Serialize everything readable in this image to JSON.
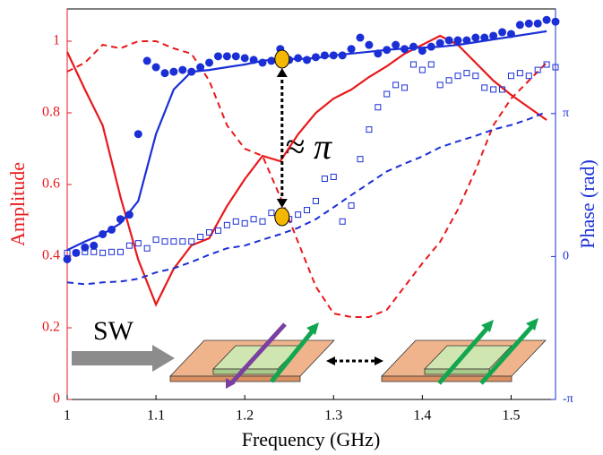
{
  "chart_data": {
    "type": "line",
    "xlabel": "Frequency (GHz)",
    "ylabel": "Amplitude",
    "y2label": "Phase (rad)",
    "xlim": [
      1,
      1.55
    ],
    "xticks": [
      1,
      1.1,
      1.2,
      1.3,
      1.4,
      1.5
    ],
    "ylim": [
      0,
      1.09
    ],
    "yticks": [
      0,
      0.2,
      0.4,
      0.6,
      0.8,
      1
    ],
    "y2lim": [
      -3.1416,
      5.44
    ],
    "y2ticks": [
      {
        "value": -3.1416,
        "label": "-π"
      },
      0,
      {
        "value": 3.1416,
        "label": "π"
      }
    ],
    "ycolor": "#e8191c",
    "y2color": "#1a2fd6",
    "x": [
      1,
      1.02,
      1.04,
      1.06,
      1.08,
      1.1,
      1.12,
      1.14,
      1.16,
      1.18,
      1.2,
      1.22,
      1.24,
      1.26,
      1.28,
      1.3,
      1.32,
      1.34,
      1.36,
      1.38,
      1.4,
      1.42,
      1.44,
      1.46,
      1.48,
      1.5,
      1.52,
      1.54
    ],
    "series": [
      {
        "color": "#e8191c",
        "style": "solid",
        "axis": "y",
        "values": [
          0.97,
          0.865,
          0.765,
          0.565,
          0.39,
          0.265,
          0.365,
          0.43,
          0.45,
          0.54,
          0.615,
          0.68,
          0.665,
          0.74,
          0.8,
          0.84,
          0.865,
          0.9,
          0.93,
          0.965,
          0.99,
          1.015,
          0.99,
          0.94,
          0.89,
          0.85,
          0.815,
          0.78
        ]
      },
      {
        "color": "#e8191c",
        "style": "dashed",
        "axis": "y",
        "values": [
          0.915,
          0.94,
          0.99,
          0.98,
          1.0,
          1.0,
          0.98,
          0.965,
          0.89,
          0.765,
          0.7,
          0.68,
          0.565,
          0.44,
          0.315,
          0.24,
          0.23,
          0.23,
          0.25,
          0.315,
          0.38,
          0.44,
          0.53,
          0.64,
          0.765,
          0.84,
          0.89,
          0.94
        ]
      },
      {
        "color": "#1a2fd6",
        "style": "solid",
        "axis": "y2",
        "values": [
          0.14,
          0.33,
          0.49,
          0.73,
          1.22,
          2.69,
          3.67,
          4.06,
          4.1,
          4.16,
          4.22,
          4.3,
          4.34,
          4.34,
          4.36,
          4.42,
          4.46,
          4.5,
          4.54,
          4.57,
          4.59,
          4.61,
          4.65,
          4.71,
          4.77,
          4.83,
          4.89,
          4.95
        ]
      },
      {
        "color": "#1a2fd6",
        "style": "dashed",
        "axis": "y2",
        "values": [
          -0.57,
          -0.61,
          -0.57,
          -0.55,
          -0.49,
          -0.35,
          -0.26,
          -0.12,
          0.04,
          0.18,
          0.24,
          0.37,
          0.49,
          0.63,
          0.82,
          1.08,
          1.35,
          1.61,
          1.87,
          2.04,
          2.2,
          2.4,
          2.53,
          2.65,
          2.79,
          2.89,
          3.02,
          3.18
        ]
      },
      {
        "color": "#1a2fd6",
        "style": "dots",
        "axis": "y2",
        "x": [
          1,
          1.01,
          1.02,
          1.03,
          1.04,
          1.05,
          1.06,
          1.07,
          1.08,
          1.09,
          1.1,
          1.11,
          1.12,
          1.13,
          1.14,
          1.15,
          1.16,
          1.17,
          1.18,
          1.19,
          1.2,
          1.21,
          1.22,
          1.23,
          1.24,
          1.25,
          1.26,
          1.27,
          1.28,
          1.29,
          1.3,
          1.31,
          1.32,
          1.33,
          1.34,
          1.35,
          1.36,
          1.37,
          1.38,
          1.39,
          1.4,
          1.41,
          1.42,
          1.43,
          1.44,
          1.45,
          1.46,
          1.47,
          1.48,
          1.49,
          1.5,
          1.51,
          1.52,
          1.53,
          1.54,
          1.55
        ],
        "values": [
          -0.06,
          0.08,
          0.2,
          0.24,
          0.49,
          0.59,
          0.82,
          0.92,
          2.69,
          4.3,
          4.16,
          4.03,
          4.06,
          4.1,
          4.06,
          4.16,
          4.26,
          4.4,
          4.4,
          4.4,
          4.36,
          4.32,
          4.26,
          4.3,
          4.56,
          4.32,
          4.36,
          4.32,
          4.38,
          4.42,
          4.42,
          4.42,
          4.56,
          4.81,
          4.65,
          4.46,
          4.54,
          4.65,
          4.56,
          4.61,
          4.52,
          4.61,
          4.69,
          4.75,
          4.75,
          4.75,
          4.81,
          4.81,
          4.85,
          4.93,
          4.89,
          5.09,
          5.12,
          5.12,
          5.2,
          5.16
        ]
      },
      {
        "color": "#1a2fd6",
        "style": "squares",
        "axis": "y2",
        "x": [
          1,
          1.01,
          1.02,
          1.03,
          1.04,
          1.05,
          1.06,
          1.07,
          1.08,
          1.09,
          1.1,
          1.11,
          1.12,
          1.13,
          1.14,
          1.15,
          1.16,
          1.17,
          1.18,
          1.19,
          1.2,
          1.21,
          1.22,
          1.23,
          1.24,
          1.25,
          1.26,
          1.27,
          1.28,
          1.29,
          1.3,
          1.31,
          1.32,
          1.33,
          1.34,
          1.35,
          1.36,
          1.37,
          1.38,
          1.39,
          1.4,
          1.41,
          1.42,
          1.43,
          1.44,
          1.45,
          1.46,
          1.47,
          1.48,
          1.49,
          1.5,
          1.51,
          1.52,
          1.53,
          1.54,
          1.55
        ],
        "values": [
          0.08,
          0.08,
          0.1,
          0.1,
          0.08,
          0.1,
          0.1,
          0.24,
          0.29,
          0.18,
          0.37,
          0.33,
          0.33,
          0.33,
          0.33,
          0.43,
          0.53,
          0.57,
          0.69,
          0.77,
          0.73,
          0.82,
          0.77,
          0.96,
          0.92,
          0.82,
          0.92,
          1.02,
          1.22,
          1.71,
          1.75,
          0.77,
          1.12,
          2.14,
          2.79,
          3.28,
          3.57,
          3.77,
          3.71,
          4.22,
          4.1,
          4.22,
          3.77,
          3.87,
          3.97,
          4.03,
          3.97,
          3.71,
          3.67,
          3.67,
          3.97,
          4.03,
          3.97,
          4.1,
          4.22,
          4.16
        ]
      }
    ],
    "highlights": {
      "color": "#f5b800",
      "x": [
        1.242,
        1.242
      ],
      "values": [
        0.95,
        0.51
      ]
    },
    "annotations": [
      "≈ π",
      "SW"
    ]
  }
}
